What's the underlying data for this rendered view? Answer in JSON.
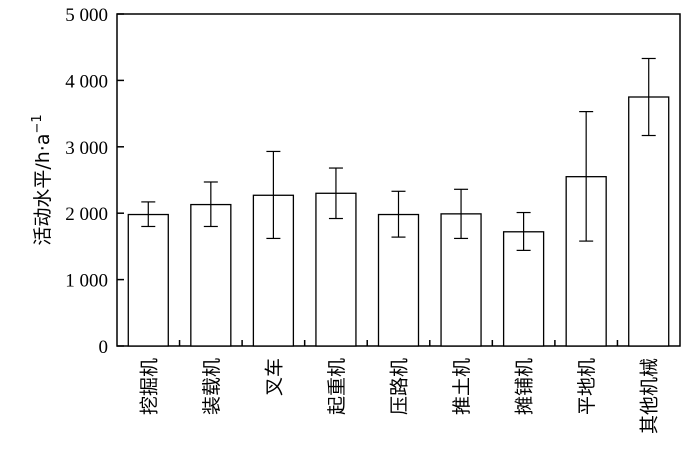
{
  "chart_data": {
    "type": "bar",
    "title": "",
    "xlabel": "",
    "ylabel": "活动水平/h·a",
    "ylabel_superscript": "−1",
    "ylim": [
      0,
      5000
    ],
    "yticks": [
      0,
      1000,
      2000,
      3000,
      4000,
      5000
    ],
    "ytick_labels": [
      "0",
      "1 000",
      "2 000",
      "3 000",
      "4 000",
      "5 000"
    ],
    "categories": [
      "挖掘机",
      "装载机",
      "叉车",
      "起重机",
      "压路机",
      "推土机",
      "摊铺机",
      "平地机",
      "其他机械"
    ],
    "values": [
      1980,
      2130,
      2270,
      2300,
      1980,
      1990,
      1720,
      2550,
      3750
    ],
    "error_low": [
      1800,
      1800,
      1620,
      1920,
      1640,
      1620,
      1440,
      1580,
      3170
    ],
    "error_high": [
      2170,
      2470,
      2930,
      2680,
      2330,
      2360,
      2010,
      3530,
      4330
    ],
    "grid": false,
    "bar_fill": "#ffffff",
    "bar_stroke": "#000000"
  }
}
